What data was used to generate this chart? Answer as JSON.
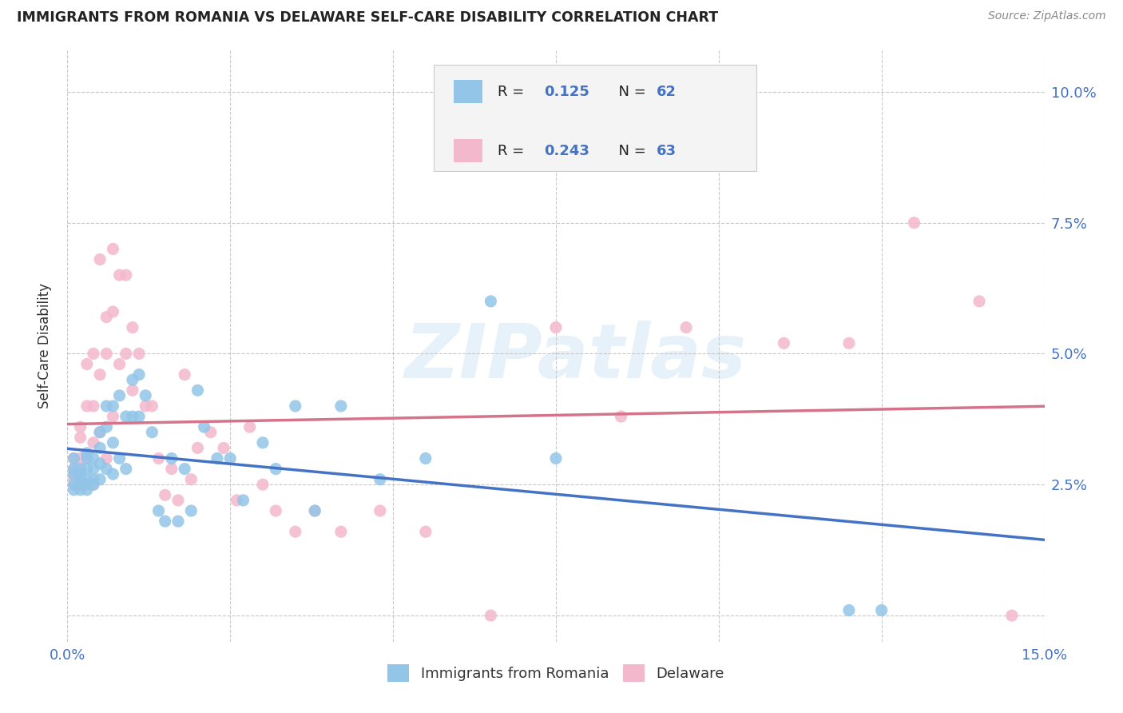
{
  "title": "IMMIGRANTS FROM ROMANIA VS DELAWARE SELF-CARE DISABILITY CORRELATION CHART",
  "source": "Source: ZipAtlas.com",
  "ylabel_label": "Self-Care Disability",
  "xlim": [
    0.0,
    0.15
  ],
  "ylim": [
    -0.005,
    0.108
  ],
  "xticks": [
    0.0,
    0.025,
    0.05,
    0.075,
    0.1,
    0.125,
    0.15
  ],
  "xtick_labels": [
    "0.0%",
    "",
    "",
    "",
    "",
    "",
    "15.0%"
  ],
  "yticks": [
    0.0,
    0.025,
    0.05,
    0.075,
    0.1
  ],
  "ytick_labels": [
    "",
    "2.5%",
    "5.0%",
    "7.5%",
    "10.0%"
  ],
  "color_blue": "#92c5e8",
  "color_pink": "#f4b8cc",
  "color_blue_dark": "#4472c4",
  "color_pink_dark": "#d4738a",
  "color_grid": "#c8c8c8",
  "watermark_text": "ZIPatlas",
  "legend_r1": "R = 0.125",
  "legend_n1": "N = 62",
  "legend_r2": "R = 0.243",
  "legend_n2": "N = 63",
  "legend_label1": "Immigrants from Romania",
  "legend_label2": "Delaware",
  "blue_x": [
    0.001,
    0.001,
    0.001,
    0.001,
    0.001,
    0.002,
    0.002,
    0.002,
    0.002,
    0.002,
    0.003,
    0.003,
    0.003,
    0.003,
    0.003,
    0.003,
    0.004,
    0.004,
    0.004,
    0.004,
    0.005,
    0.005,
    0.005,
    0.005,
    0.006,
    0.006,
    0.006,
    0.007,
    0.007,
    0.007,
    0.008,
    0.008,
    0.009,
    0.009,
    0.01,
    0.01,
    0.011,
    0.011,
    0.012,
    0.013,
    0.014,
    0.015,
    0.016,
    0.017,
    0.018,
    0.019,
    0.02,
    0.021,
    0.023,
    0.025,
    0.027,
    0.03,
    0.032,
    0.035,
    0.038,
    0.042,
    0.048,
    0.055,
    0.065,
    0.075,
    0.12,
    0.125
  ],
  "blue_y": [
    0.03,
    0.028,
    0.027,
    0.025,
    0.024,
    0.028,
    0.027,
    0.026,
    0.025,
    0.024,
    0.031,
    0.03,
    0.028,
    0.026,
    0.025,
    0.024,
    0.03,
    0.028,
    0.026,
    0.025,
    0.035,
    0.032,
    0.029,
    0.026,
    0.04,
    0.036,
    0.028,
    0.04,
    0.033,
    0.027,
    0.042,
    0.03,
    0.038,
    0.028,
    0.045,
    0.038,
    0.046,
    0.038,
    0.042,
    0.035,
    0.02,
    0.018,
    0.03,
    0.018,
    0.028,
    0.02,
    0.043,
    0.036,
    0.03,
    0.03,
    0.022,
    0.033,
    0.028,
    0.04,
    0.02,
    0.04,
    0.026,
    0.03,
    0.06,
    0.03,
    0.001,
    0.001
  ],
  "pink_x": [
    0.001,
    0.001,
    0.001,
    0.001,
    0.001,
    0.002,
    0.002,
    0.002,
    0.002,
    0.002,
    0.003,
    0.003,
    0.003,
    0.003,
    0.004,
    0.004,
    0.004,
    0.004,
    0.005,
    0.005,
    0.005,
    0.006,
    0.006,
    0.006,
    0.007,
    0.007,
    0.007,
    0.008,
    0.008,
    0.009,
    0.009,
    0.01,
    0.01,
    0.011,
    0.012,
    0.013,
    0.014,
    0.015,
    0.016,
    0.017,
    0.018,
    0.019,
    0.02,
    0.022,
    0.024,
    0.026,
    0.028,
    0.03,
    0.032,
    0.035,
    0.038,
    0.042,
    0.048,
    0.055,
    0.065,
    0.075,
    0.085,
    0.095,
    0.11,
    0.12,
    0.13,
    0.14,
    0.145
  ],
  "pink_y": [
    0.03,
    0.028,
    0.027,
    0.026,
    0.025,
    0.036,
    0.034,
    0.03,
    0.028,
    0.025,
    0.048,
    0.04,
    0.03,
    0.025,
    0.05,
    0.04,
    0.033,
    0.025,
    0.068,
    0.046,
    0.035,
    0.057,
    0.05,
    0.03,
    0.07,
    0.058,
    0.038,
    0.065,
    0.048,
    0.065,
    0.05,
    0.055,
    0.043,
    0.05,
    0.04,
    0.04,
    0.03,
    0.023,
    0.028,
    0.022,
    0.046,
    0.026,
    0.032,
    0.035,
    0.032,
    0.022,
    0.036,
    0.025,
    0.02,
    0.016,
    0.02,
    0.016,
    0.02,
    0.016,
    0.0,
    0.055,
    0.038,
    0.055,
    0.052,
    0.052,
    0.075,
    0.06,
    0.0
  ]
}
